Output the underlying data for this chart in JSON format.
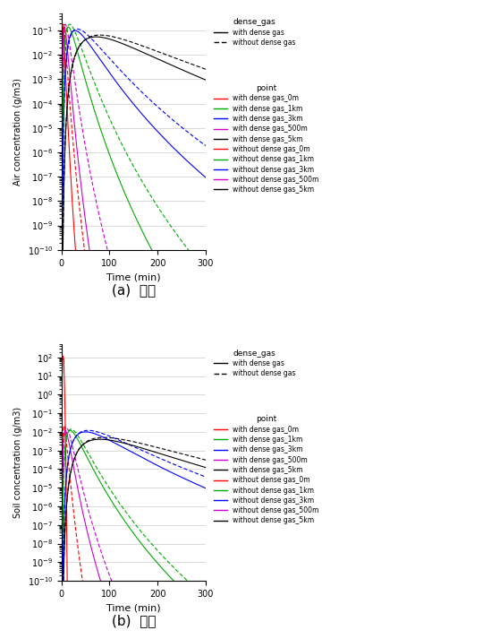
{
  "title_a": "(a)  대기",
  "title_b": "(b)  토양",
  "ylabel_a": "Air concentration (g/m3)",
  "ylabel_b": "Soil concentration (g/m3)",
  "xlabel": "Time (min)",
  "xlim_a": [
    0,
    300
  ],
  "xlim_b": [
    0,
    300
  ],
  "ylim_a": [
    1e-10,
    0.5
  ],
  "ylim_b": [
    1e-10,
    500
  ],
  "yticks_a": [
    1e-10,
    1e-06,
    0.01
  ],
  "yticks_b": [
    1e-10,
    1e-06,
    0.01
  ],
  "curves_a_with": [
    {
      "color": "#FF0000",
      "peak": 0.14,
      "t_peak": 3,
      "sigma": 0.35
    },
    {
      "color": "#CC00CC",
      "peak": 0.14,
      "t_peak": 6,
      "sigma": 0.35
    },
    {
      "color": "#00AA00",
      "peak": 0.14,
      "t_peak": 14,
      "sigma": 0.4
    },
    {
      "color": "#0000FF",
      "peak": 0.1,
      "t_peak": 28,
      "sigma": 0.45
    },
    {
      "color": "#000000",
      "peak": 0.055,
      "t_peak": 72,
      "sigma": 0.5
    }
  ],
  "curves_a_without": [
    {
      "color": "#FF0000",
      "peak": 0.18,
      "t_peak": 4,
      "sigma": 0.38
    },
    {
      "color": "#CC00CC",
      "peak": 0.18,
      "t_peak": 8,
      "sigma": 0.38
    },
    {
      "color": "#00AA00",
      "peak": 0.18,
      "t_peak": 17,
      "sigma": 0.42
    },
    {
      "color": "#0000FF",
      "peak": 0.115,
      "t_peak": 33,
      "sigma": 0.47
    },
    {
      "color": "#000000",
      "peak": 0.065,
      "t_peak": 80,
      "sigma": 0.52
    }
  ],
  "curves_b_with": [
    {
      "color": "#FF0000",
      "peak": 120.0,
      "t_peak": 3,
      "sigma": 0.18,
      "spike": true
    },
    {
      "color": "#CC00CC",
      "peak": 0.012,
      "t_peak": 8,
      "sigma": 0.38
    },
    {
      "color": "#00AA00",
      "peak": 0.012,
      "t_peak": 18,
      "sigma": 0.42
    },
    {
      "color": "#0000FF",
      "peak": 0.01,
      "t_peak": 50,
      "sigma": 0.48
    },
    {
      "color": "#000000",
      "peak": 0.004,
      "t_peak": 80,
      "sigma": 0.5
    }
  ],
  "curves_b_without": [
    {
      "color": "#FF0000",
      "peak": 0.022,
      "t_peak": 5,
      "sigma": 0.35
    },
    {
      "color": "#CC00CC",
      "peak": 0.018,
      "t_peak": 10,
      "sigma": 0.38
    },
    {
      "color": "#00AA00",
      "peak": 0.014,
      "t_peak": 20,
      "sigma": 0.42
    },
    {
      "color": "#0000FF",
      "peak": 0.012,
      "t_peak": 55,
      "sigma": 0.5
    },
    {
      "color": "#000000",
      "peak": 0.005,
      "t_peak": 88,
      "sigma": 0.52
    }
  ],
  "legend_dense_gas_title": "dense_gas",
  "legend_point_title": "point",
  "legend_point_labels_with": [
    "with dense gas_0m",
    "with dense gas_1km",
    "with dense gas_3km",
    "with dense gas_500m",
    "with dense gas_5km"
  ],
  "legend_point_labels_without": [
    "without dense gas_0m",
    "without dense gas_1km",
    "without dense gas_3km",
    "without dense gas_500m",
    "without dense gas_5km"
  ],
  "legend_point_colors": [
    "#FF0000",
    "#00AA00",
    "#0000FF",
    "#CC00CC",
    "#000000"
  ],
  "bg_color": "#FFFFFF",
  "grid_color": "#CCCCCC"
}
